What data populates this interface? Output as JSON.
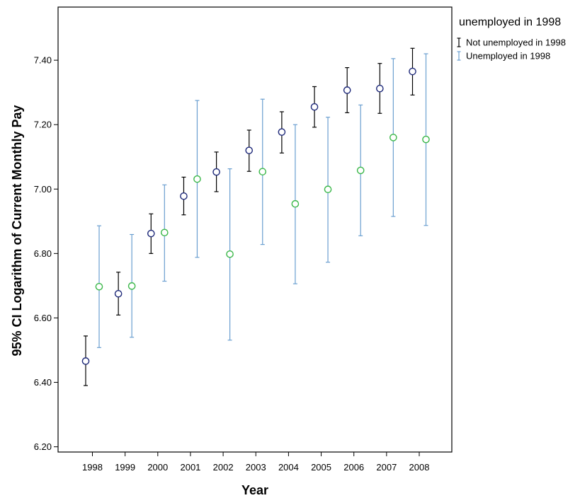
{
  "chart_data": {
    "type": "errorbar",
    "xlabel": "Year",
    "ylabel": "95% CI Logarithm of Current Monthly Pay",
    "categories": [
      "1998",
      "1999",
      "2000",
      "2001",
      "2002",
      "2003",
      "2004",
      "2005",
      "2006",
      "2007",
      "2008"
    ],
    "ylim": [
      6.18,
      7.56
    ],
    "yticks": [
      6.2,
      6.4,
      6.6,
      6.8,
      7.0,
      7.2,
      7.4
    ],
    "ytick_labels": [
      "6.20",
      "6.40",
      "6.60",
      "6.80",
      "7.00",
      "7.20",
      "7.40"
    ],
    "legend": {
      "title": "unemployed in 1998",
      "position": "right"
    },
    "series": [
      {
        "name": "Not unemployed in 1998",
        "bar_color": "#000000",
        "marker_color": "#1f2a7a",
        "means": [
          6.466,
          6.675,
          6.862,
          6.978,
          7.053,
          7.12,
          7.177,
          7.255,
          7.307,
          7.312,
          7.365
        ],
        "lower": [
          6.39,
          6.609,
          6.8,
          6.92,
          6.992,
          7.055,
          7.112,
          7.192,
          7.237,
          7.235,
          7.292
        ],
        "upper": [
          6.544,
          6.742,
          6.923,
          7.037,
          7.115,
          7.183,
          7.24,
          7.318,
          7.377,
          7.39,
          7.437
        ]
      },
      {
        "name": "Unemployed in 1998",
        "bar_color": "#6a9fd0",
        "marker_color": "#3cb84a",
        "means": [
          6.697,
          6.699,
          6.865,
          7.031,
          6.798,
          7.054,
          6.954,
          6.999,
          7.058,
          7.16,
          7.154
        ],
        "lower": [
          6.508,
          6.54,
          6.714,
          6.788,
          6.531,
          6.828,
          6.706,
          6.773,
          6.855,
          6.915,
          6.887
        ],
        "upper": [
          6.886,
          6.859,
          7.013,
          7.275,
          7.063,
          7.279,
          7.2,
          7.223,
          7.261,
          7.405,
          7.42
        ]
      }
    ]
  }
}
